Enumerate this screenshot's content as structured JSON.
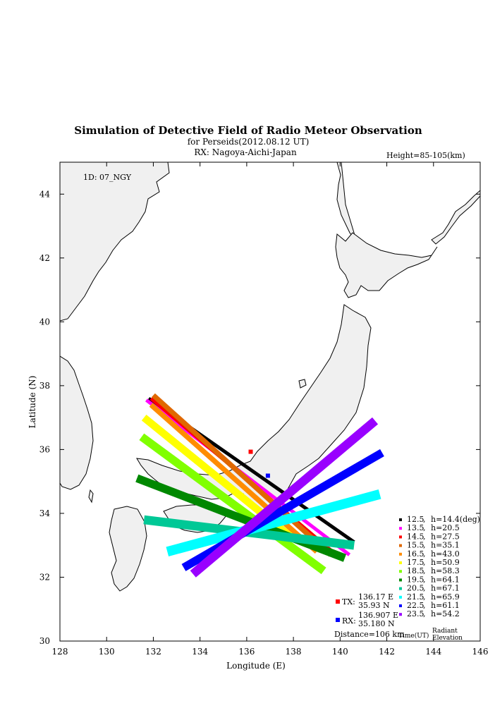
{
  "header": {
    "title": "Simulation of Detective Field of Radio Meteor Observation",
    "subtitle": "for Perseids(2012.08.12 UT)",
    "rx_line": "RX: Nagoya-Aichi-Japan",
    "height_note": "Height=85-105(km)",
    "id_label": "1D: 07_NGY"
  },
  "axes": {
    "xlabel": "Longitude (E)",
    "ylabel": "Latitude (N)",
    "xlim": [
      128,
      146
    ],
    "ylim": [
      30,
      45
    ],
    "xticks": [
      "128",
      "130",
      "132",
      "134",
      "136",
      "138",
      "140",
      "142",
      "144",
      "146"
    ],
    "yticks": [
      "30",
      "32",
      "34",
      "36",
      "38",
      "40",
      "42",
      "44"
    ]
  },
  "stations": {
    "tx": {
      "label": "TX:",
      "lon_text": "136.17 E",
      "lat_text": "35.93 N",
      "lon": 136.17,
      "lat": 35.93,
      "color": "#ff0000"
    },
    "rx": {
      "label": "RX:",
      "lon_text": "136.907 E",
      "lat_text": "35.180 N",
      "lon": 136.907,
      "lat": 35.18,
      "color": "#0000ff"
    },
    "distance": "Distance=106 km"
  },
  "legend": {
    "footer_time": "Time(UT)",
    "footer_radiant": "Radiant",
    "footer_elevation": "Elevation",
    "entries": [
      {
        "time": "12.5",
        "sep": ",",
        "h": "h=14.4(deg)",
        "color": "#000000"
      },
      {
        "time": "13.5",
        "sep": ",",
        "h": "h=20.5",
        "color": "#ff00ff"
      },
      {
        "time": "14.5",
        "sep": ",",
        "h": "h=27.5",
        "color": "#ff0000"
      },
      {
        "time": "15.5",
        "sep": ",",
        "h": "h=35.1",
        "color": "#e06800"
      },
      {
        "time": "16.5",
        "sep": ",",
        "h": "h=43.0",
        "color": "#ff8c00"
      },
      {
        "time": "17.5",
        "sep": ",",
        "h": "h=50.9",
        "color": "#ffff00"
      },
      {
        "time": "18.5",
        "sep": ",",
        "h": "h=58.3",
        "color": "#80ff00"
      },
      {
        "time": "19.5",
        "sep": ",",
        "h": "h=64.1",
        "color": "#008800"
      },
      {
        "time": "20.5",
        "sep": ",",
        "h": "h=67.1",
        "color": "#00c896"
      },
      {
        "time": "21.5",
        "sep": ",",
        "h": "h=65.9",
        "color": "#00ffff"
      },
      {
        "time": "22.5",
        "sep": ",",
        "h": "h=61.1",
        "color": "#0000ff"
      },
      {
        "time": "23.5",
        "sep": ",",
        "h": "h=54.2",
        "color": "#9900ff"
      }
    ]
  },
  "chart_data": {
    "type": "map",
    "xlim": [
      128,
      146
    ],
    "ylim": [
      30,
      45
    ],
    "bands": [
      {
        "time": "12.5",
        "color": "#000000",
        "from": [
          131.8,
          37.6
        ],
        "to": [
          140.6,
          33.1
        ],
        "width": 0.15
      },
      {
        "time": "13.5",
        "color": "#ff00ff",
        "from": [
          131.7,
          37.55
        ],
        "to": [
          140.4,
          32.7
        ],
        "width": 0.15
      },
      {
        "time": "14.5",
        "color": "#ff0000",
        "from": [
          131.9,
          37.6
        ],
        "to": [
          140.0,
          32.6
        ],
        "width": 0.15
      },
      {
        "time": "15.5",
        "color": "#e06800",
        "from": [
          132.0,
          37.7
        ],
        "to": [
          139.6,
          32.7
        ],
        "width": 0.22
      },
      {
        "time": "16.5",
        "color": "#ff8c00",
        "from": [
          131.9,
          37.4
        ],
        "to": [
          139.0,
          32.8
        ],
        "width": 0.22
      },
      {
        "time": "17.5",
        "color": "#ffff00",
        "from": [
          131.6,
          37.0
        ],
        "to": [
          138.0,
          33.2
        ],
        "width": 0.32
      },
      {
        "time": "18.5",
        "color": "#80ff00",
        "from": [
          131.5,
          36.4
        ],
        "to": [
          139.3,
          32.2
        ],
        "width": 0.35
      },
      {
        "time": "19.5",
        "color": "#008800",
        "from": [
          131.3,
          35.1
        ],
        "to": [
          140.2,
          32.6
        ],
        "width": 0.35
      },
      {
        "time": "20.5",
        "color": "#00c896",
        "from": [
          131.6,
          33.8
        ],
        "to": [
          140.6,
          33.0
        ],
        "width": 0.38
      },
      {
        "time": "21.5",
        "color": "#00ffff",
        "from": [
          132.6,
          32.8
        ],
        "to": [
          141.7,
          34.6
        ],
        "width": 0.42
      },
      {
        "time": "22.5",
        "color": "#0000ff",
        "from": [
          133.3,
          32.3
        ],
        "to": [
          141.8,
          35.9
        ],
        "width": 0.35
      },
      {
        "time": "23.5",
        "color": "#9900ff",
        "from": [
          133.7,
          32.1
        ],
        "to": [
          141.5,
          36.9
        ],
        "width": 0.38
      }
    ]
  }
}
